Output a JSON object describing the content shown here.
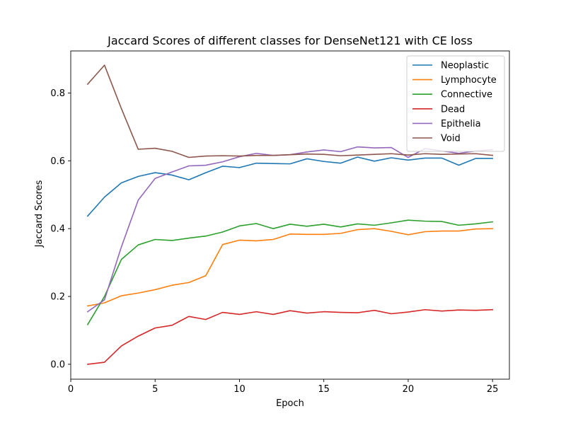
{
  "chart_data": {
    "type": "line",
    "title": "Jaccard Scores of different classes for DenseNet121 with CE loss",
    "xlabel": "Epoch",
    "ylabel": "Jaccard Scores",
    "xlim": [
      0,
      26
    ],
    "ylim": [
      -0.044,
      0.924
    ],
    "x_ticks": [
      0,
      5,
      10,
      15,
      20,
      25
    ],
    "y_ticks": [
      0.0,
      0.2,
      0.4,
      0.6,
      0.8
    ],
    "x_tick_labels": [
      "0",
      "5",
      "10",
      "15",
      "20",
      "25"
    ],
    "y_tick_labels": [
      "0.0",
      "0.2",
      "0.4",
      "0.6",
      "0.8"
    ],
    "grid": false,
    "legend_position": "top-right",
    "x": [
      1,
      2,
      3,
      4,
      5,
      6,
      7,
      8,
      9,
      10,
      11,
      12,
      13,
      14,
      15,
      16,
      17,
      18,
      19,
      20,
      21,
      22,
      23,
      24,
      25
    ],
    "series": [
      {
        "name": "Neoplastic",
        "color": "#1f77b4",
        "values": [
          0.437,
          0.493,
          0.535,
          0.554,
          0.565,
          0.558,
          0.544,
          0.565,
          0.584,
          0.58,
          0.593,
          0.592,
          0.591,
          0.606,
          0.598,
          0.593,
          0.611,
          0.599,
          0.609,
          0.602,
          0.608,
          0.608,
          0.587,
          0.607,
          0.607
        ]
      },
      {
        "name": "Lymphocyte",
        "color": "#ff7f0e",
        "values": [
          0.172,
          0.181,
          0.202,
          0.21,
          0.22,
          0.233,
          0.241,
          0.261,
          0.353,
          0.366,
          0.364,
          0.368,
          0.384,
          0.383,
          0.383,
          0.386,
          0.397,
          0.4,
          0.392,
          0.382,
          0.391,
          0.393,
          0.393,
          0.399,
          0.4
        ]
      },
      {
        "name": "Connective",
        "color": "#2ca02c",
        "values": [
          0.117,
          0.2,
          0.309,
          0.352,
          0.368,
          0.365,
          0.372,
          0.378,
          0.39,
          0.408,
          0.415,
          0.4,
          0.413,
          0.407,
          0.413,
          0.405,
          0.414,
          0.41,
          0.417,
          0.425,
          0.422,
          0.421,
          0.41,
          0.414,
          0.42
        ]
      },
      {
        "name": "Dead",
        "color": "#d62728",
        "values": [
          0.0,
          0.006,
          0.054,
          0.083,
          0.107,
          0.115,
          0.141,
          0.132,
          0.153,
          0.147,
          0.155,
          0.147,
          0.158,
          0.151,
          0.155,
          0.153,
          0.152,
          0.159,
          0.149,
          0.154,
          0.161,
          0.157,
          0.16,
          0.159,
          0.161
        ]
      },
      {
        "name": "Epithelia",
        "color": "#9467bd",
        "values": [
          0.155,
          0.19,
          0.346,
          0.484,
          0.548,
          0.567,
          0.585,
          0.587,
          0.597,
          0.612,
          0.622,
          0.616,
          0.618,
          0.626,
          0.632,
          0.627,
          0.641,
          0.638,
          0.639,
          0.61,
          0.636,
          0.629,
          0.622,
          0.629,
          0.633
        ]
      },
      {
        "name": "Void",
        "color": "#8c564b",
        "values": [
          0.826,
          0.882,
          0.754,
          0.634,
          0.637,
          0.628,
          0.61,
          0.614,
          0.615,
          0.614,
          0.616,
          0.616,
          0.618,
          0.62,
          0.619,
          0.615,
          0.617,
          0.619,
          0.621,
          0.617,
          0.621,
          0.619,
          0.62,
          0.621,
          0.616
        ]
      }
    ]
  }
}
